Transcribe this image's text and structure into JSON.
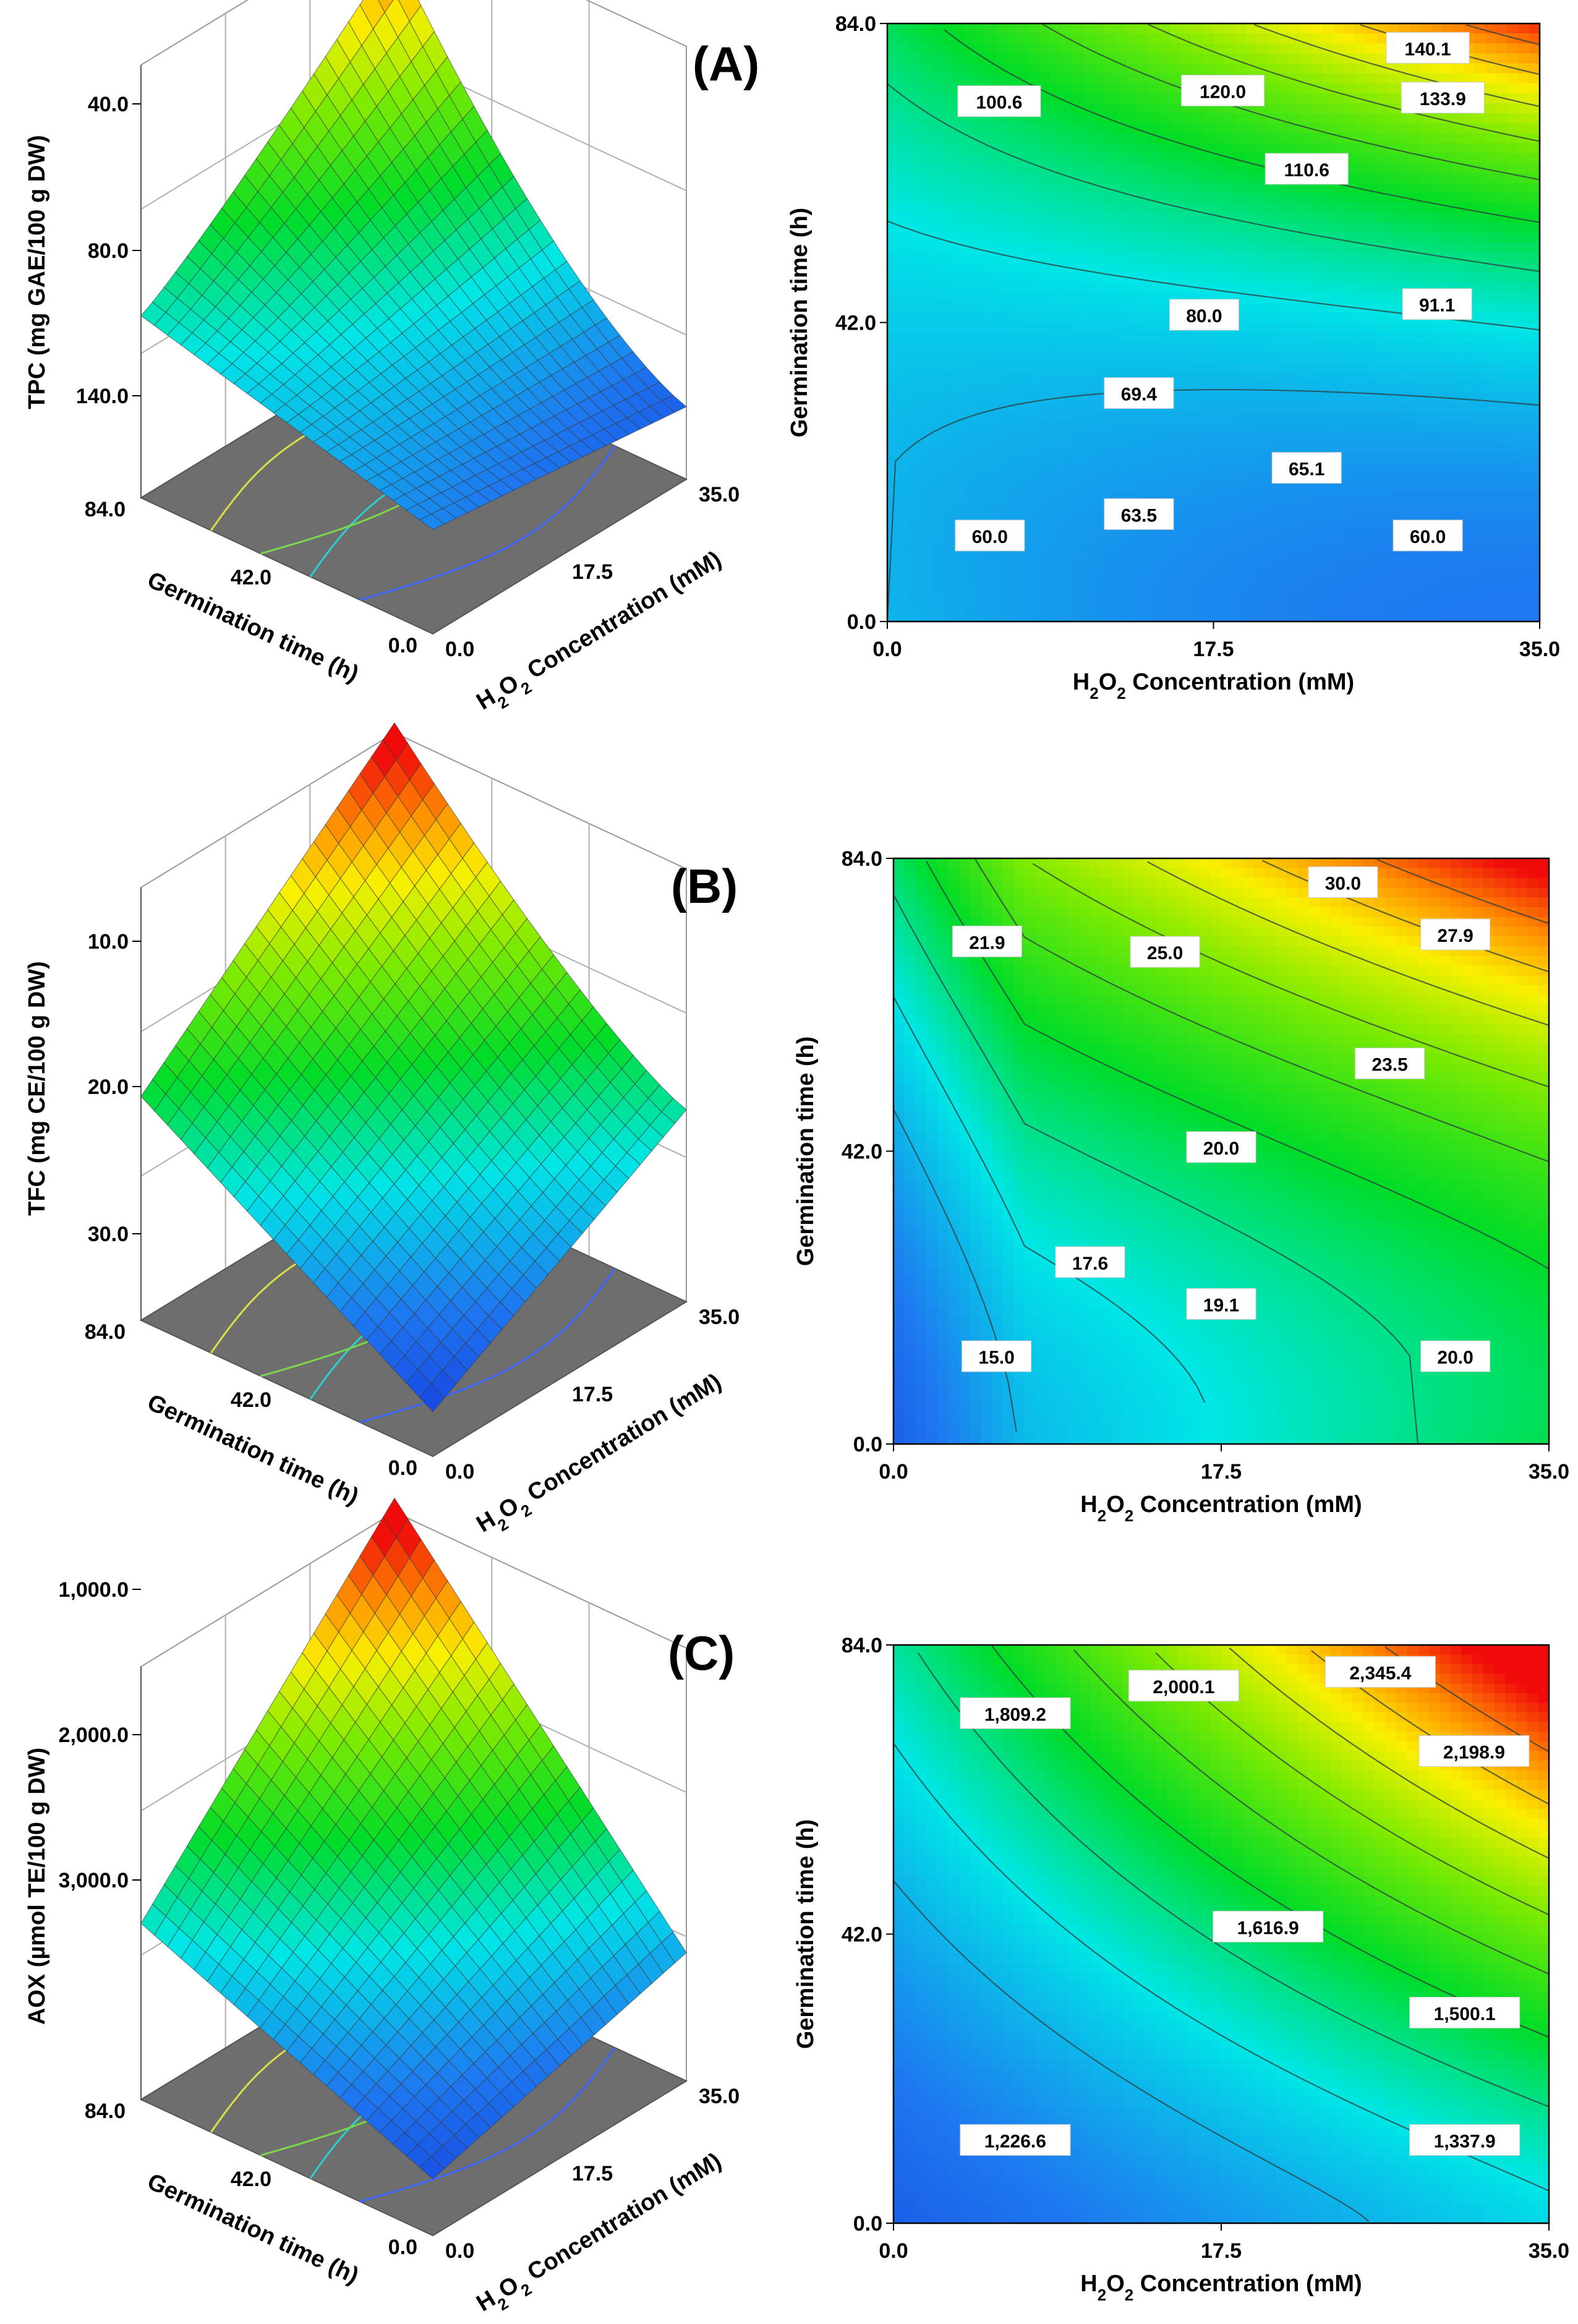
{
  "chart_data": [
    {
      "panel": "A",
      "type": "surface3d",
      "title": "(A)",
      "zlabel": "TPC  (mg GAE/100 g DW)",
      "xlabel": "H₂O₂ Concentration (mM)",
      "ylabel": "Germination time (h)",
      "xticks": [
        "0.0",
        "17.5",
        "35.0"
      ],
      "yticks": [
        "0.0",
        "42.0",
        "84.0"
      ],
      "zticks": [
        "40.0",
        "80.0",
        "140.0"
      ],
      "xlim": [
        0,
        35
      ],
      "ylim": [
        0,
        84
      ],
      "zlim": [
        40,
        140
      ],
      "corner_values": {
        "x0_y0": 60,
        "x35_y0": 60,
        "x0_y84": 84,
        "x35_y84": 140
      }
    },
    {
      "panel": "A",
      "type": "contour",
      "xlabel": "H₂O₂ Concentration (mM)",
      "ylabel": "Germination time (h)",
      "xticks": [
        "0.0",
        "17.5",
        "35.0"
      ],
      "yticks": [
        "0.0",
        "42.0",
        "84.0"
      ],
      "xlim": [
        0,
        35
      ],
      "ylim": [
        0,
        84
      ],
      "contour_labels": [
        {
          "text": "140.1",
          "x": 29.0,
          "y": 80.5
        },
        {
          "text": "120.0",
          "x": 18.0,
          "y": 74.5
        },
        {
          "text": "133.9",
          "x": 29.8,
          "y": 73.5
        },
        {
          "text": "100.6",
          "x": 6.0,
          "y": 73.0
        },
        {
          "text": "110.6",
          "x": 22.5,
          "y": 63.5
        },
        {
          "text": "80.0",
          "x": 17.0,
          "y": 43.0
        },
        {
          "text": "91.1",
          "x": 29.5,
          "y": 44.5
        },
        {
          "text": "69.4",
          "x": 13.5,
          "y": 32.0
        },
        {
          "text": "65.1",
          "x": 22.5,
          "y": 21.5
        },
        {
          "text": "63.5",
          "x": 13.5,
          "y": 15.0
        },
        {
          "text": "60.0",
          "x": 5.5,
          "y": 12.0
        },
        {
          "text": "60.0",
          "x": 29.0,
          "y": 12.0
        }
      ]
    },
    {
      "panel": "B",
      "type": "surface3d",
      "title": "(B)",
      "zlabel": "TFC  (mg CE/100 g DW)",
      "xlabel": "H₂O₂ Concentration (mM)",
      "ylabel": "Germination time (h)",
      "xticks": [
        "0.0",
        "17.5",
        "35.0"
      ],
      "yticks": [
        "0.0",
        "42.0",
        "84.0"
      ],
      "zticks": [
        "10.0",
        "20.0",
        "30.0"
      ],
      "xlim": [
        0,
        35
      ],
      "ylim": [
        0,
        84
      ],
      "zlim": [
        10,
        30
      ],
      "corner_values": {
        "x0_y0": 13,
        "x35_y0": 20,
        "x0_y84": 20,
        "x35_y84": 30
      }
    },
    {
      "panel": "B",
      "type": "contour",
      "xlabel": "H₂O₂ Concentration (mM)",
      "ylabel": "Germination time (h)",
      "xticks": [
        "0.0",
        "17.5",
        "35.0"
      ],
      "yticks": [
        "0.0",
        "42.0",
        "84.0"
      ],
      "xlim": [
        0,
        35
      ],
      "ylim": [
        0,
        84
      ],
      "contour_labels": [
        {
          "text": "30.0",
          "x": 24.0,
          "y": 80.5
        },
        {
          "text": "21.9",
          "x": 5.0,
          "y": 72.0
        },
        {
          "text": "25.0",
          "x": 14.5,
          "y": 70.5
        },
        {
          "text": "27.9",
          "x": 30.0,
          "y": 73.0
        },
        {
          "text": "23.5",
          "x": 26.5,
          "y": 54.5
        },
        {
          "text": "20.0",
          "x": 17.5,
          "y": 42.5
        },
        {
          "text": "17.6",
          "x": 10.5,
          "y": 26.0
        },
        {
          "text": "19.1",
          "x": 17.5,
          "y": 20.0
        },
        {
          "text": "15.0",
          "x": 5.5,
          "y": 12.5
        },
        {
          "text": "20.0",
          "x": 30.0,
          "y": 12.5
        }
      ]
    },
    {
      "panel": "C",
      "type": "surface3d",
      "title": "(C)",
      "zlabel": "AOX  (µmol TE/100 g DW)",
      "xlabel": "H₂O₂ Concentration (mM)",
      "ylabel": "Germination time (h)",
      "xticks": [
        "0.0",
        "17.5",
        "35.0"
      ],
      "yticks": [
        "0.0",
        "42.0",
        "84.0"
      ],
      "zticks": [
        "1,000.0",
        "2,000.0",
        "3,000.0"
      ],
      "xlim": [
        0,
        35
      ],
      "ylim": [
        0,
        84
      ],
      "zlim": [
        1000,
        3000
      ],
      "corner_values": {
        "x0_y0": 1150,
        "x35_y0": 1450,
        "x0_y84": 1700,
        "x35_y84": 2500
      }
    },
    {
      "panel": "C",
      "type": "contour",
      "xlabel": "H₂O₂ Concentration (mM)",
      "ylabel": "Germination time (h)",
      "xticks": [
        "0.0",
        "17.5",
        "35.0"
      ],
      "yticks": [
        "0.0",
        "42.0",
        "84.0"
      ],
      "xlim": [
        0,
        35
      ],
      "ylim": [
        0,
        84
      ],
      "contour_labels": [
        {
          "text": "2,345.4",
          "x": 26.0,
          "y": 80.0
        },
        {
          "text": "2,000.1",
          "x": 15.5,
          "y": 78.0
        },
        {
          "text": "1,809.2",
          "x": 6.5,
          "y": 74.0
        },
        {
          "text": "2,198.9",
          "x": 31.0,
          "y": 68.5
        },
        {
          "text": "1,616.9",
          "x": 20.0,
          "y": 43.0
        },
        {
          "text": "1,500.1",
          "x": 30.5,
          "y": 30.5
        },
        {
          "text": "1,226.6",
          "x": 6.5,
          "y": 12.0
        },
        {
          "text": "1,337.9",
          "x": 30.5,
          "y": 12.0
        }
      ]
    }
  ]
}
